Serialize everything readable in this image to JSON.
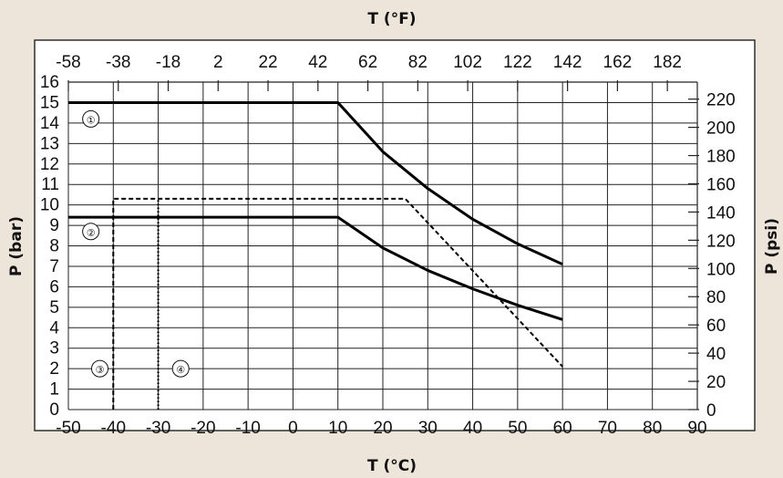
{
  "chart_data": {
    "type": "line",
    "title": "",
    "xlabel": "T (°C)",
    "xlabel_top": "T (°F)",
    "ylabel": "P (bar)",
    "ylabel_right": "P (psi)",
    "xlim": [
      -50,
      90
    ],
    "ylim": [
      0,
      16
    ],
    "x_ticks": [
      "-50",
      "-40",
      "-30",
      "-20",
      "-10",
      "0",
      "10",
      "20",
      "30",
      "40",
      "50",
      "60",
      "70",
      "80",
      "90"
    ],
    "y_ticks": [
      "0",
      "1",
      "2",
      "3",
      "4",
      "5",
      "6",
      "7",
      "8",
      "9",
      "10",
      "11",
      "12",
      "13",
      "14",
      "15",
      "16"
    ],
    "top_ticks": [
      "-58",
      "-38",
      "-18",
      "2",
      "22",
      "42",
      "62",
      "82",
      "102",
      "122",
      "142",
      "162",
      "182"
    ],
    "right_ticks": [
      "0",
      "20",
      "40",
      "60",
      "80",
      "100",
      "120",
      "140",
      "160",
      "180",
      "200",
      "220"
    ],
    "grid": true,
    "series": [
      {
        "name": "①",
        "style": "solid",
        "color": "#000000",
        "x": [
          -50,
          10,
          20,
          30,
          40,
          50,
          60
        ],
        "y": [
          15,
          15,
          12.6,
          10.8,
          9.3,
          8.1,
          7.1
        ]
      },
      {
        "name": "②",
        "style": "solid",
        "color": "#000000",
        "x": [
          -50,
          10,
          20,
          30,
          40,
          50,
          60
        ],
        "y": [
          9.4,
          9.4,
          7.9,
          6.8,
          5.9,
          5.1,
          4.4
        ]
      },
      {
        "name": "③",
        "style": "dashed",
        "color": "#000000",
        "x": [
          -40,
          -40,
          25,
          60
        ],
        "y": [
          0,
          10.3,
          10.3,
          2.1
        ]
      },
      {
        "name": "④",
        "style": "dotted",
        "color": "#000000",
        "x": [
          -30,
          -30
        ],
        "y": [
          0,
          10.3
        ]
      }
    ],
    "annotations": [
      {
        "text": "①",
        "x": -45,
        "y": 14.2
      },
      {
        "text": "②",
        "x": -45,
        "y": 8.7
      },
      {
        "text": "③",
        "x": -43,
        "y": 2
      },
      {
        "text": "④",
        "x": -25,
        "y": 2
      }
    ]
  }
}
